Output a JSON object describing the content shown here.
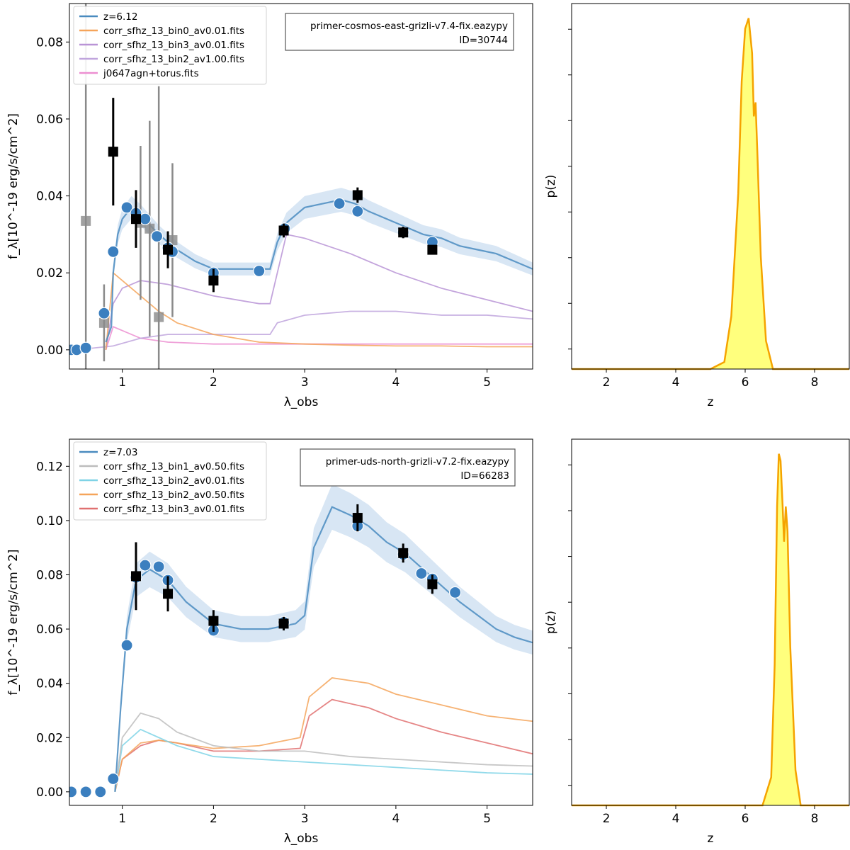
{
  "figure": {
    "colors": {
      "model": "#4a8bbf",
      "model_band": "#c8dcef",
      "obs_filled": "#000000",
      "obs_faint": "#8a8a8a",
      "pz_line": "#f5a300",
      "pz_fill": "#ffff66"
    }
  },
  "chart_data": [
    {
      "panel": "top-left",
      "type": "line",
      "xlabel": "λ_obs",
      "ylabel": "f_λ[10^-19 erg/s/cm^2]",
      "xlim": [
        0.42,
        5.5
      ],
      "ylim": [
        -0.005,
        0.09
      ],
      "xticks": [
        "1",
        "2",
        "3",
        "4",
        "5"
      ],
      "yticks": [
        "0.00",
        "0.02",
        "0.04",
        "0.06",
        "0.08"
      ],
      "legend_position": "top-left",
      "annotation": [
        "primer-cosmos-east-grizli-v7.4-fix.eazypy",
        "ID=30744"
      ],
      "series": [
        {
          "name": "z=6.12",
          "color": "#4a8bbf",
          "x": [
            0.82,
            0.88,
            0.9,
            0.95,
            1.0,
            1.1,
            1.2,
            1.4,
            1.6,
            1.8,
            2.0,
            2.2,
            2.4,
            2.55,
            2.62,
            2.7,
            2.8,
            3.0,
            3.2,
            3.4,
            3.55,
            3.7,
            3.9,
            4.1,
            4.3,
            4.5,
            4.7,
            4.9,
            5.1,
            5.3,
            5.5
          ],
          "y": [
            0.002,
            0.006,
            0.02,
            0.03,
            0.034,
            0.037,
            0.035,
            0.03,
            0.026,
            0.023,
            0.021,
            0.021,
            0.021,
            0.021,
            0.021,
            0.028,
            0.033,
            0.037,
            0.038,
            0.039,
            0.038,
            0.036,
            0.034,
            0.032,
            0.03,
            0.029,
            0.027,
            0.026,
            0.025,
            0.023,
            0.021
          ]
        },
        {
          "name": "corr_sfhz_13_bin0_av0.01.fits",
          "color": "#f5a45a",
          "x": [
            0.82,
            0.9,
            1.0,
            1.2,
            1.4,
            1.6,
            2.0,
            2.5,
            3.0,
            3.5,
            4.0,
            4.5,
            5.0,
            5.5
          ],
          "y": [
            0.0,
            0.02,
            0.018,
            0.014,
            0.01,
            0.007,
            0.004,
            0.002,
            0.0015,
            0.0012,
            0.001,
            0.001,
            0.0008,
            0.0008
          ]
        },
        {
          "name": "corr_sfhz_13_bin3_av0.01.fits",
          "color": "#b994d6",
          "x": [
            0.82,
            0.9,
            1.0,
            1.2,
            1.5,
            2.0,
            2.5,
            2.62,
            2.7,
            2.8,
            3.0,
            3.5,
            4.0,
            4.5,
            5.0,
            5.5
          ],
          "y": [
            0.0,
            0.012,
            0.016,
            0.018,
            0.017,
            0.014,
            0.012,
            0.012,
            0.02,
            0.03,
            0.029,
            0.025,
            0.02,
            0.016,
            0.013,
            0.01
          ]
        },
        {
          "name": "corr_sfhz_13_bin2_av1.00.fits",
          "color": "#c0a5dd",
          "x": [
            0.5,
            0.9,
            1.2,
            1.5,
            2.0,
            2.5,
            2.62,
            2.7,
            3.0,
            3.5,
            4.0,
            4.5,
            5.0,
            5.5
          ],
          "y": [
            0.0,
            0.001,
            0.003,
            0.004,
            0.004,
            0.004,
            0.004,
            0.007,
            0.009,
            0.01,
            0.01,
            0.009,
            0.009,
            0.008
          ]
        },
        {
          "name": "j0647agn+torus.fits",
          "color": "#ec8fd1",
          "x": [
            0.82,
            0.9,
            1.0,
            1.2,
            1.5,
            2.0,
            2.5,
            3.0,
            3.5,
            4.0,
            4.5,
            5.0,
            5.5
          ],
          "y": [
            0.0,
            0.006,
            0.005,
            0.003,
            0.002,
            0.0015,
            0.0015,
            0.0015,
            0.0015,
            0.0015,
            0.0015,
            0.0015,
            0.0015
          ]
        }
      ],
      "model_points": {
        "x": [
          0.44,
          0.5,
          0.6,
          0.8,
          0.9,
          1.05,
          1.15,
          1.25,
          1.38,
          1.5,
          1.55,
          2.0,
          2.5,
          2.78,
          3.38,
          3.58,
          4.08,
          4.4
        ],
        "y": [
          0.0,
          0.0,
          0.0005,
          0.0095,
          0.0255,
          0.037,
          0.0355,
          0.034,
          0.0295,
          0.0265,
          0.0255,
          0.02,
          0.0205,
          0.0315,
          0.038,
          0.036,
          0.0305,
          0.028
        ]
      },
      "observed": {
        "x": [
          0.9,
          1.15,
          1.5,
          2.0,
          2.77,
          3.58,
          4.08,
          4.4
        ],
        "y": [
          0.0515,
          0.034,
          0.026,
          0.018,
          0.031,
          0.0402,
          0.0305,
          0.026
        ],
        "err": [
          0.014,
          0.0075,
          0.0048,
          0.003,
          0.0018,
          0.002,
          0.0015,
          0.0012
        ]
      },
      "observed_faint": {
        "x": [
          0.6,
          0.8,
          1.2,
          1.3,
          1.4,
          1.55
        ],
        "y": [
          0.0335,
          0.007,
          0.033,
          0.0315,
          0.0085,
          0.0285
        ],
        "err": [
          0.065,
          0.01,
          0.02,
          0.028,
          0.06,
          0.02
        ]
      }
    },
    {
      "panel": "top-right",
      "type": "area",
      "xlabel": "z",
      "ylabel": "p(z)",
      "xlim": [
        1,
        9
      ],
      "xticks": [
        "2",
        "4",
        "6",
        "8"
      ],
      "x": [
        1,
        5.0,
        5.4,
        5.6,
        5.8,
        5.9,
        6.0,
        6.1,
        6.2,
        6.25,
        6.3,
        6.35,
        6.45,
        6.6,
        6.8,
        9
      ],
      "y": [
        0,
        0,
        0.02,
        0.15,
        0.5,
        0.82,
        0.97,
        1.0,
        0.9,
        0.72,
        0.76,
        0.62,
        0.32,
        0.08,
        0,
        0
      ]
    },
    {
      "panel": "bottom-left",
      "type": "line",
      "xlabel": "λ_obs",
      "ylabel": "f_λ[10^-19 erg/s/cm^2]",
      "xlim": [
        0.42,
        5.5
      ],
      "ylim": [
        -0.005,
        0.13
      ],
      "xticks": [
        "1",
        "2",
        "3",
        "4",
        "5"
      ],
      "yticks": [
        "0.00",
        "0.02",
        "0.04",
        "0.06",
        "0.08",
        "0.10",
        "0.12"
      ],
      "legend_position": "top-left",
      "annotation": [
        "primer-uds-north-grizli-v7.2-fix.eazypy",
        "ID=66283"
      ],
      "series": [
        {
          "name": "z=7.03",
          "color": "#4a8bbf",
          "x": [
            0.92,
            0.98,
            1.05,
            1.15,
            1.3,
            1.5,
            1.7,
            2.0,
            2.3,
            2.6,
            2.9,
            3.0,
            3.1,
            3.3,
            3.5,
            3.7,
            3.9,
            4.1,
            4.3,
            4.5,
            4.7,
            4.9,
            5.1,
            5.3,
            5.5
          ],
          "y": [
            0.0,
            0.03,
            0.06,
            0.078,
            0.082,
            0.078,
            0.07,
            0.062,
            0.06,
            0.06,
            0.062,
            0.065,
            0.09,
            0.105,
            0.102,
            0.098,
            0.092,
            0.088,
            0.082,
            0.076,
            0.07,
            0.065,
            0.06,
            0.057,
            0.055
          ]
        },
        {
          "name": "corr_sfhz_13_bin1_av0.50.fits",
          "color": "#bdbdbd",
          "x": [
            0.92,
            1.0,
            1.2,
            1.4,
            1.6,
            2.0,
            2.5,
            3.0,
            3.5,
            4.0,
            4.5,
            5.0,
            5.5
          ],
          "y": [
            0.0,
            0.02,
            0.029,
            0.027,
            0.022,
            0.017,
            0.015,
            0.015,
            0.013,
            0.012,
            0.011,
            0.01,
            0.0095
          ]
        },
        {
          "name": "corr_sfhz_13_bin2_av0.01.fits",
          "color": "#7fd3e6",
          "x": [
            0.92,
            1.0,
            1.2,
            1.4,
            1.6,
            2.0,
            2.5,
            3.0,
            3.5,
            4.0,
            4.5,
            5.0,
            5.5
          ],
          "y": [
            0.0,
            0.017,
            0.023,
            0.02,
            0.017,
            0.013,
            0.012,
            0.011,
            0.01,
            0.009,
            0.008,
            0.007,
            0.0065
          ]
        },
        {
          "name": "corr_sfhz_13_bin2_av0.50.fits",
          "color": "#f5a45a",
          "x": [
            0.92,
            1.0,
            1.2,
            1.4,
            1.6,
            2.0,
            2.5,
            2.95,
            3.05,
            3.3,
            3.7,
            4.0,
            4.5,
            5.0,
            5.5
          ],
          "y": [
            0.0,
            0.012,
            0.018,
            0.019,
            0.018,
            0.016,
            0.017,
            0.02,
            0.035,
            0.042,
            0.04,
            0.036,
            0.032,
            0.028,
            0.026
          ]
        },
        {
          "name": "corr_sfhz_13_bin3_av0.01.fits",
          "color": "#e07070",
          "x": [
            0.92,
            1.0,
            1.2,
            1.4,
            1.6,
            2.0,
            2.5,
            2.95,
            3.05,
            3.3,
            3.7,
            4.0,
            4.5,
            5.0,
            5.5
          ],
          "y": [
            0.0,
            0.012,
            0.017,
            0.019,
            0.018,
            0.015,
            0.015,
            0.016,
            0.028,
            0.034,
            0.031,
            0.027,
            0.022,
            0.018,
            0.014
          ]
        }
      ],
      "model_points": {
        "x": [
          0.44,
          0.6,
          0.76,
          0.9,
          1.05,
          1.15,
          1.25,
          1.4,
          1.5,
          2.0,
          2.77,
          3.58,
          4.08,
          4.28,
          4.4,
          4.65
        ],
        "y": [
          0.0,
          0.0,
          0.0,
          0.0048,
          0.054,
          0.079,
          0.0835,
          0.083,
          0.078,
          0.0595,
          0.0625,
          0.098,
          0.0875,
          0.0805,
          0.0785,
          0.0735
        ]
      },
      "observed": {
        "x": [
          1.15,
          1.5,
          2.0,
          2.77,
          3.58,
          4.08,
          4.4
        ],
        "y": [
          0.0795,
          0.073,
          0.063,
          0.062,
          0.101,
          0.088,
          0.0765
        ],
        "err": [
          0.0125,
          0.0065,
          0.004,
          0.0025,
          0.005,
          0.0035,
          0.0035
        ]
      }
    },
    {
      "panel": "bottom-right",
      "type": "area",
      "xlabel": "z",
      "ylabel": "p(z)",
      "xlim": [
        1,
        9
      ],
      "xticks": [
        "2",
        "4",
        "6",
        "8"
      ],
      "x": [
        1,
        6.5,
        6.75,
        6.85,
        6.92,
        6.97,
        7.02,
        7.08,
        7.12,
        7.17,
        7.22,
        7.3,
        7.45,
        7.6,
        9
      ],
      "y": [
        0,
        0,
        0.08,
        0.4,
        0.85,
        1.0,
        0.98,
        0.85,
        0.75,
        0.85,
        0.78,
        0.45,
        0.1,
        0,
        0
      ]
    }
  ]
}
